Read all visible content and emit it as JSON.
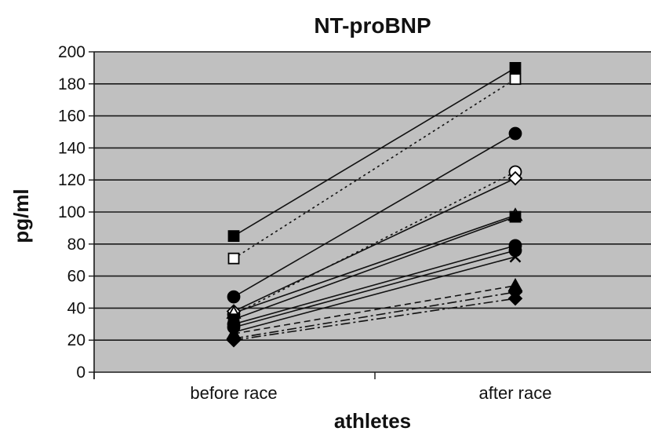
{
  "chart_data": {
    "type": "line",
    "title": "NT-proBNP",
    "xlabel": "athletes",
    "ylabel": "pg/ml",
    "categories": [
      "before race",
      "after race"
    ],
    "ylim": [
      0,
      200
    ],
    "yticks": [
      0,
      20,
      40,
      60,
      80,
      100,
      120,
      140,
      160,
      180,
      200
    ],
    "grid": true,
    "plot_background": "#c0c0c0",
    "series": [
      {
        "values": [
          85,
          190
        ],
        "marker": "square",
        "style": "solid"
      },
      {
        "values": [
          71,
          183
        ],
        "marker": "square-open",
        "style": "dotted"
      },
      {
        "values": [
          47,
          149
        ],
        "marker": "circle",
        "style": "solid"
      },
      {
        "values": [
          36,
          125
        ],
        "marker": "circle-open",
        "style": "dotted"
      },
      {
        "values": [
          38,
          121
        ],
        "marker": "diamond-open",
        "style": "solid"
      },
      {
        "values": [
          37,
          98
        ],
        "marker": "triangle-open",
        "style": "solid"
      },
      {
        "values": [
          33,
          97
        ],
        "marker": "square",
        "style": "solid"
      },
      {
        "values": [
          30,
          79
        ],
        "marker": "circle",
        "style": "solid"
      },
      {
        "values": [
          28,
          76
        ],
        "marker": "circle",
        "style": "solid"
      },
      {
        "values": [
          25,
          72
        ],
        "marker": "x",
        "style": "solid"
      },
      {
        "values": [
          24,
          54
        ],
        "marker": "triangle",
        "style": "dashed"
      },
      {
        "values": [
          21,
          50
        ],
        "marker": "diamond",
        "style": "dashdot"
      },
      {
        "values": [
          20,
          46
        ],
        "marker": "diamond",
        "style": "dashdot"
      }
    ]
  }
}
